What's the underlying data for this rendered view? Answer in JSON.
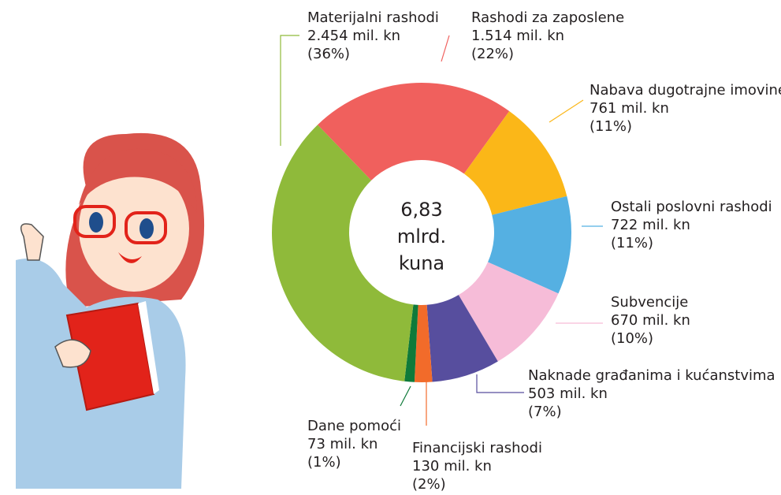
{
  "chart_data": {
    "type": "donut",
    "center_label": [
      "6,83",
      "mlrd.",
      "kuna"
    ],
    "categories": [
      "Rashodi za zaposlene",
      "Nabava dugotrajne imovine",
      "Ostali poslovni rashodi",
      "Subvencije",
      "Naknade građanima i kućanstvima",
      "Financijski rashodi",
      "Dane pomoći",
      "Materijalni rashodi"
    ],
    "values": [
      1514,
      761,
      722,
      670,
      503,
      130,
      73,
      2454
    ],
    "value_labels": [
      "1.514 mil. kn",
      "761 mil. kn",
      "722 mil. kn",
      "670 mil. kn",
      "503 mil. kn",
      "130 mil. kn",
      "73 mil. kn",
      "2.454 mil. kn"
    ],
    "percent_labels": [
      "(22%)",
      "(11%)",
      "(11%)",
      "(10%)",
      "(7%)",
      "(2%)",
      "(1%)",
      "(36%)"
    ],
    "colors": [
      "#f0605d",
      "#fbb718",
      "#55b0e2",
      "#f6bcd8",
      "#574e9e",
      "#f26b2a",
      "#0f7a3a",
      "#8fba3a"
    ]
  }
}
